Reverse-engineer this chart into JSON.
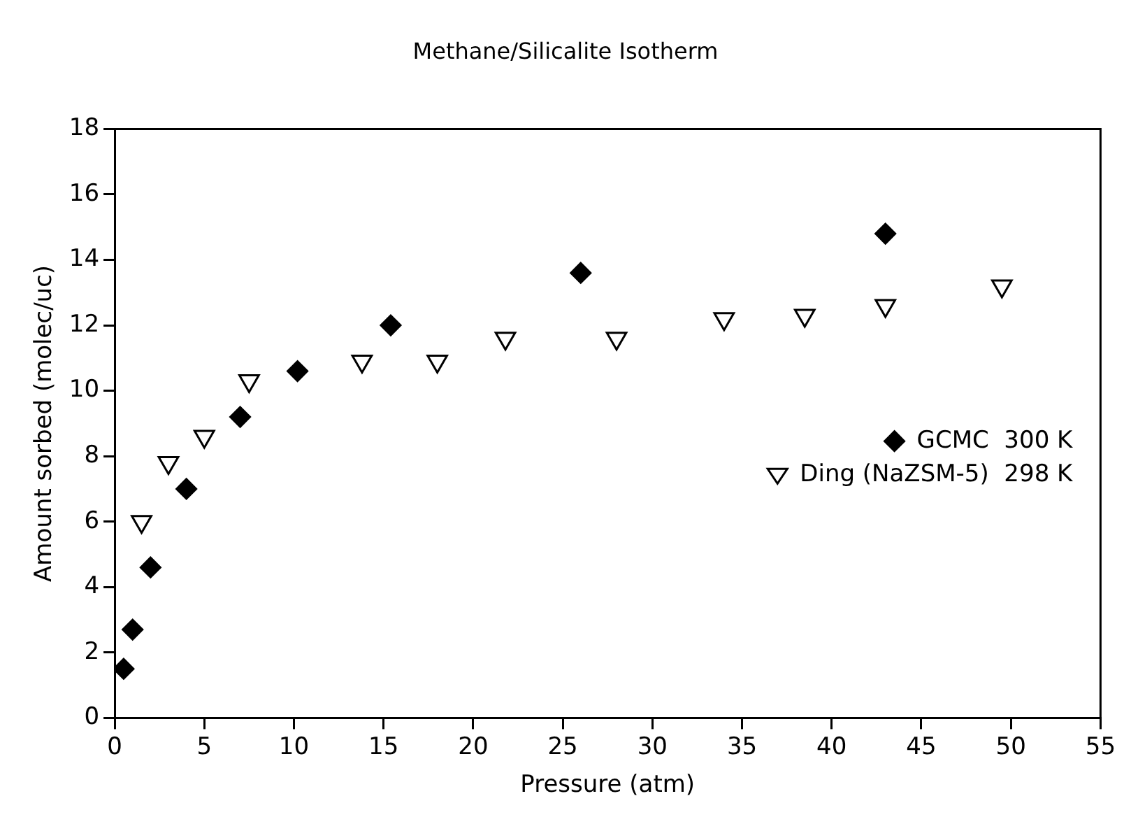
{
  "chart_data": {
    "type": "scatter",
    "title": "Methane/Silicalite Isotherm",
    "xlabel": "Pressure (atm)",
    "ylabel": "Amount sorbed (molec/uc)",
    "xlim": [
      0,
      55
    ],
    "xticks": [
      0,
      5,
      10,
      15,
      20,
      25,
      30,
      35,
      40,
      45,
      50,
      55
    ],
    "ylim": [
      0,
      18
    ],
    "yticks": [
      0,
      2,
      4,
      6,
      8,
      10,
      12,
      14,
      16,
      18
    ],
    "grid": false,
    "legend": "right",
    "series": [
      {
        "name": "GCMC  300 K",
        "color": "#000000",
        "marker": "diamond",
        "x": [
          0.5,
          1,
          2,
          4,
          7,
          10.2,
          15.4,
          26,
          43
        ],
        "values": [
          1.5,
          2.7,
          4.6,
          7.0,
          9.2,
          10.6,
          12.0,
          13.6,
          14.8
        ]
      },
      {
        "name": "Ding (NaZSM-5)  298 K",
        "color": "#000000",
        "marker": "triangle",
        "x": [
          1.5,
          3,
          5,
          7.5,
          13.8,
          18,
          21.8,
          28,
          34,
          38.5,
          43,
          49.5
        ],
        "values": [
          6.0,
          7.8,
          8.6,
          10.3,
          10.9,
          10.9,
          11.6,
          11.6,
          12.2,
          12.3,
          12.6,
          13.2
        ]
      }
    ]
  }
}
